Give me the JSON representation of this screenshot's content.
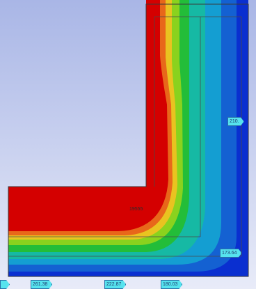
{
  "viewport": {
    "background_top": "#a9b6e6",
    "background_bottom": "#e8ebf8"
  },
  "contour_colors": [
    "#d40000",
    "#e8671a",
    "#e9c320",
    "#8ad21e",
    "#23bd39",
    "#16b9a4",
    "#149ed2",
    "#1461d2",
    "#0a2fd0"
  ],
  "probes": {
    "right_upper": "210.",
    "right_lower": "173.64",
    "bottom_1": "261.38",
    "bottom_2": "222.87",
    "bottom_3": "180.03"
  },
  "center_label": "19555"
}
